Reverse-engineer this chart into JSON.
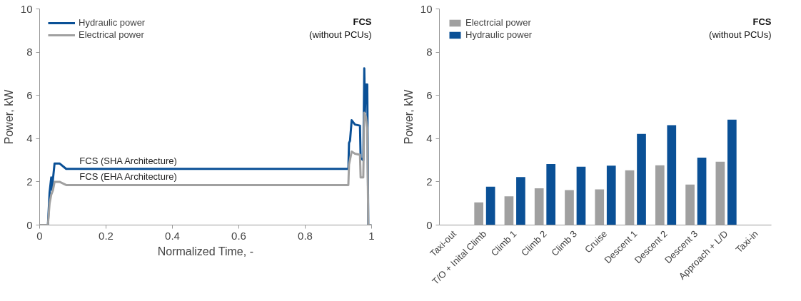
{
  "chart_data": [
    {
      "type": "line",
      "xlabel": "Normalized Time, -",
      "ylabel": "Power, kW",
      "xlim": [
        0,
        1
      ],
      "ylim": [
        0,
        10
      ],
      "xticks": [
        0,
        0.2,
        0.4,
        0.6,
        0.8,
        1
      ],
      "yticks": [
        0,
        2,
        4,
        6,
        8,
        10
      ],
      "grid": false,
      "legend": "top left",
      "marker": "none",
      "line_style": "solid",
      "annotations": [
        "FCS",
        "(without PCUs)",
        {
          "text": "FCS (SHA Architecture)",
          "x": 0.12,
          "y": 2.6
        },
        {
          "text": "FCS (EHA Architecture)",
          "x": 0.12,
          "y": 1.85
        }
      ],
      "series": [
        {
          "name": "Hydraulic power",
          "color": "#0a5096",
          "x": [
            0,
            0.025,
            0.03,
            0.035,
            0.038,
            0.04,
            0.045,
            0.06,
            0.08,
            0.93,
            0.932,
            0.935,
            0.94,
            0.95,
            0.965,
            0.967,
            0.975,
            0.978,
            0.98,
            0.983,
            0.987,
            0.99,
            1.0
          ],
          "values": [
            0,
            0,
            1.5,
            2.2,
            1.6,
            2.1,
            2.85,
            2.85,
            2.6,
            2.6,
            3.8,
            3.9,
            4.85,
            4.65,
            4.6,
            3.1,
            3.0,
            7.25,
            5.2,
            6.5,
            6.5,
            0,
            0
          ]
        },
        {
          "name": "Electrical power",
          "color": "#a0a0a0",
          "x": [
            0,
            0.025,
            0.03,
            0.035,
            0.04,
            0.045,
            0.06,
            0.08,
            0.93,
            0.932,
            0.94,
            0.95,
            0.965,
            0.967,
            0.975,
            0.978,
            0.983,
            0.987,
            0.99,
            1.0
          ],
          "values": [
            0,
            0,
            1.0,
            1.4,
            1.6,
            2.0,
            2.0,
            1.85,
            1.85,
            2.8,
            3.4,
            3.3,
            3.25,
            2.2,
            2.2,
            5.2,
            5.0,
            4.5,
            0,
            0
          ]
        }
      ]
    },
    {
      "type": "bar",
      "ylabel": "Power, kW",
      "ylim": [
        0,
        10
      ],
      "yticks": [
        0,
        2,
        4,
        6,
        8,
        10
      ],
      "grid": false,
      "legend": "top left",
      "annotations": [
        "FCS",
        "(without PCUs)"
      ],
      "categories": [
        "Taxi-out",
        "T/O + Inital Climb",
        "Climb 1",
        "Climb 2",
        "Climb 3",
        "Cruise",
        "Descent 1",
        "Descent 2",
        "Descent 3",
        "Approach + L/D",
        "Taxi-in"
      ],
      "series": [
        {
          "name": "Electrcial power",
          "color": "#a0a0a0",
          "values": [
            0,
            1.05,
            1.33,
            1.7,
            1.62,
            1.65,
            2.53,
            2.76,
            1.87,
            2.93,
            0
          ]
        },
        {
          "name": "Hydraulic power",
          "color": "#0a5096",
          "values": [
            0,
            1.77,
            2.22,
            2.82,
            2.7,
            2.75,
            4.22,
            4.62,
            3.12,
            4.88,
            0
          ]
        }
      ]
    }
  ]
}
